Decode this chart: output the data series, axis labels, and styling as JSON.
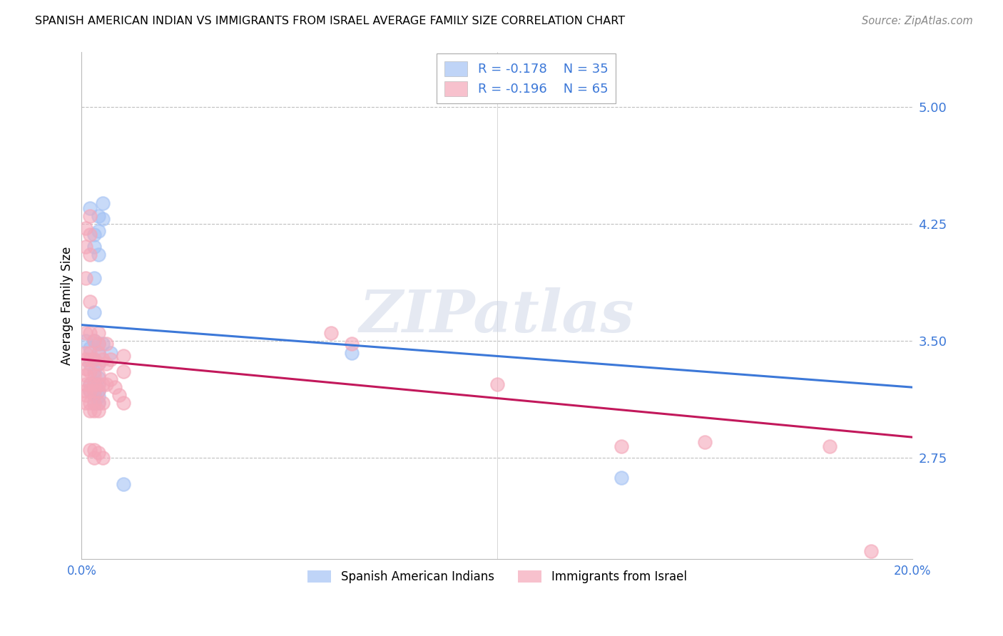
{
  "title": "SPANISH AMERICAN INDIAN VS IMMIGRANTS FROM ISRAEL AVERAGE FAMILY SIZE CORRELATION CHART",
  "source": "Source: ZipAtlas.com",
  "ylabel": "Average Family Size",
  "yticks": [
    2.75,
    3.5,
    4.25,
    5.0
  ],
  "ytick_labels": [
    "2.75",
    "3.50",
    "4.25",
    "5.00"
  ],
  "xlim": [
    0.0,
    0.2
  ],
  "ylim": [
    2.1,
    5.35
  ],
  "legend1_label": "Spanish American Indians",
  "legend2_label": "Immigrants from Israel",
  "legend1_R": "R = -0.178",
  "legend1_N": "N = 35",
  "legend2_R": "R = -0.196",
  "legend2_N": "N = 65",
  "blue_color": "#a4c2f4",
  "pink_color": "#f4a7b9",
  "blue_line_color": "#3c78d8",
  "pink_line_color": "#c2185b",
  "axis_color": "#3c78d8",
  "grid_color": "#b0b0b0",
  "watermark": "ZIPatlas",
  "blue_scatter": [
    [
      0.001,
      3.5
    ],
    [
      0.002,
      3.45
    ],
    [
      0.002,
      3.35
    ],
    [
      0.002,
      4.35
    ],
    [
      0.002,
      3.22
    ],
    [
      0.002,
      3.18
    ],
    [
      0.003,
      4.18
    ],
    [
      0.003,
      4.1
    ],
    [
      0.003,
      3.9
    ],
    [
      0.003,
      3.68
    ],
    [
      0.003,
      3.5
    ],
    [
      0.003,
      3.38
    ],
    [
      0.003,
      3.3
    ],
    [
      0.003,
      3.22
    ],
    [
      0.003,
      3.18
    ],
    [
      0.003,
      3.15
    ],
    [
      0.003,
      3.1
    ],
    [
      0.004,
      4.3
    ],
    [
      0.004,
      4.2
    ],
    [
      0.004,
      4.05
    ],
    [
      0.004,
      3.48
    ],
    [
      0.004,
      3.42
    ],
    [
      0.004,
      3.35
    ],
    [
      0.004,
      3.26
    ],
    [
      0.004,
      3.22
    ],
    [
      0.004,
      3.18
    ],
    [
      0.004,
      3.14
    ],
    [
      0.004,
      3.1
    ],
    [
      0.005,
      4.38
    ],
    [
      0.005,
      4.28
    ],
    [
      0.005,
      3.48
    ],
    [
      0.007,
      3.42
    ],
    [
      0.065,
      3.42
    ],
    [
      0.13,
      2.62
    ],
    [
      0.01,
      2.58
    ]
  ],
  "pink_scatter": [
    [
      0.001,
      4.22
    ],
    [
      0.001,
      4.1
    ],
    [
      0.001,
      3.9
    ],
    [
      0.001,
      3.55
    ],
    [
      0.001,
      3.42
    ],
    [
      0.001,
      3.38
    ],
    [
      0.001,
      3.32
    ],
    [
      0.001,
      3.28
    ],
    [
      0.001,
      3.22
    ],
    [
      0.001,
      3.18
    ],
    [
      0.001,
      3.15
    ],
    [
      0.001,
      3.1
    ],
    [
      0.002,
      4.3
    ],
    [
      0.002,
      4.18
    ],
    [
      0.002,
      4.05
    ],
    [
      0.002,
      3.75
    ],
    [
      0.002,
      3.55
    ],
    [
      0.002,
      3.42
    ],
    [
      0.002,
      3.38
    ],
    [
      0.002,
      3.3
    ],
    [
      0.002,
      3.22
    ],
    [
      0.002,
      3.18
    ],
    [
      0.002,
      3.1
    ],
    [
      0.002,
      3.05
    ],
    [
      0.002,
      2.8
    ],
    [
      0.003,
      3.5
    ],
    [
      0.003,
      3.38
    ],
    [
      0.003,
      3.28
    ],
    [
      0.003,
      3.22
    ],
    [
      0.003,
      3.18
    ],
    [
      0.003,
      3.1
    ],
    [
      0.003,
      3.05
    ],
    [
      0.003,
      2.8
    ],
    [
      0.003,
      2.75
    ],
    [
      0.004,
      3.55
    ],
    [
      0.004,
      3.48
    ],
    [
      0.004,
      3.42
    ],
    [
      0.004,
      3.35
    ],
    [
      0.004,
      3.28
    ],
    [
      0.004,
      3.22
    ],
    [
      0.004,
      3.18
    ],
    [
      0.004,
      3.1
    ],
    [
      0.004,
      3.05
    ],
    [
      0.004,
      2.78
    ],
    [
      0.005,
      3.38
    ],
    [
      0.005,
      3.22
    ],
    [
      0.005,
      3.1
    ],
    [
      0.005,
      2.75
    ],
    [
      0.006,
      3.48
    ],
    [
      0.006,
      3.35
    ],
    [
      0.006,
      3.22
    ],
    [
      0.007,
      3.38
    ],
    [
      0.007,
      3.25
    ],
    [
      0.008,
      3.2
    ],
    [
      0.009,
      3.15
    ],
    [
      0.01,
      3.4
    ],
    [
      0.01,
      3.3
    ],
    [
      0.01,
      3.1
    ],
    [
      0.06,
      3.55
    ],
    [
      0.065,
      3.48
    ],
    [
      0.1,
      3.22
    ],
    [
      0.13,
      2.82
    ],
    [
      0.15,
      2.85
    ],
    [
      0.18,
      2.82
    ],
    [
      0.19,
      2.15
    ]
  ],
  "blue_line_x": [
    0.0,
    0.2
  ],
  "blue_line_y": [
    3.6,
    3.2
  ],
  "pink_line_x": [
    0.0,
    0.2
  ],
  "pink_line_y": [
    3.38,
    2.88
  ]
}
